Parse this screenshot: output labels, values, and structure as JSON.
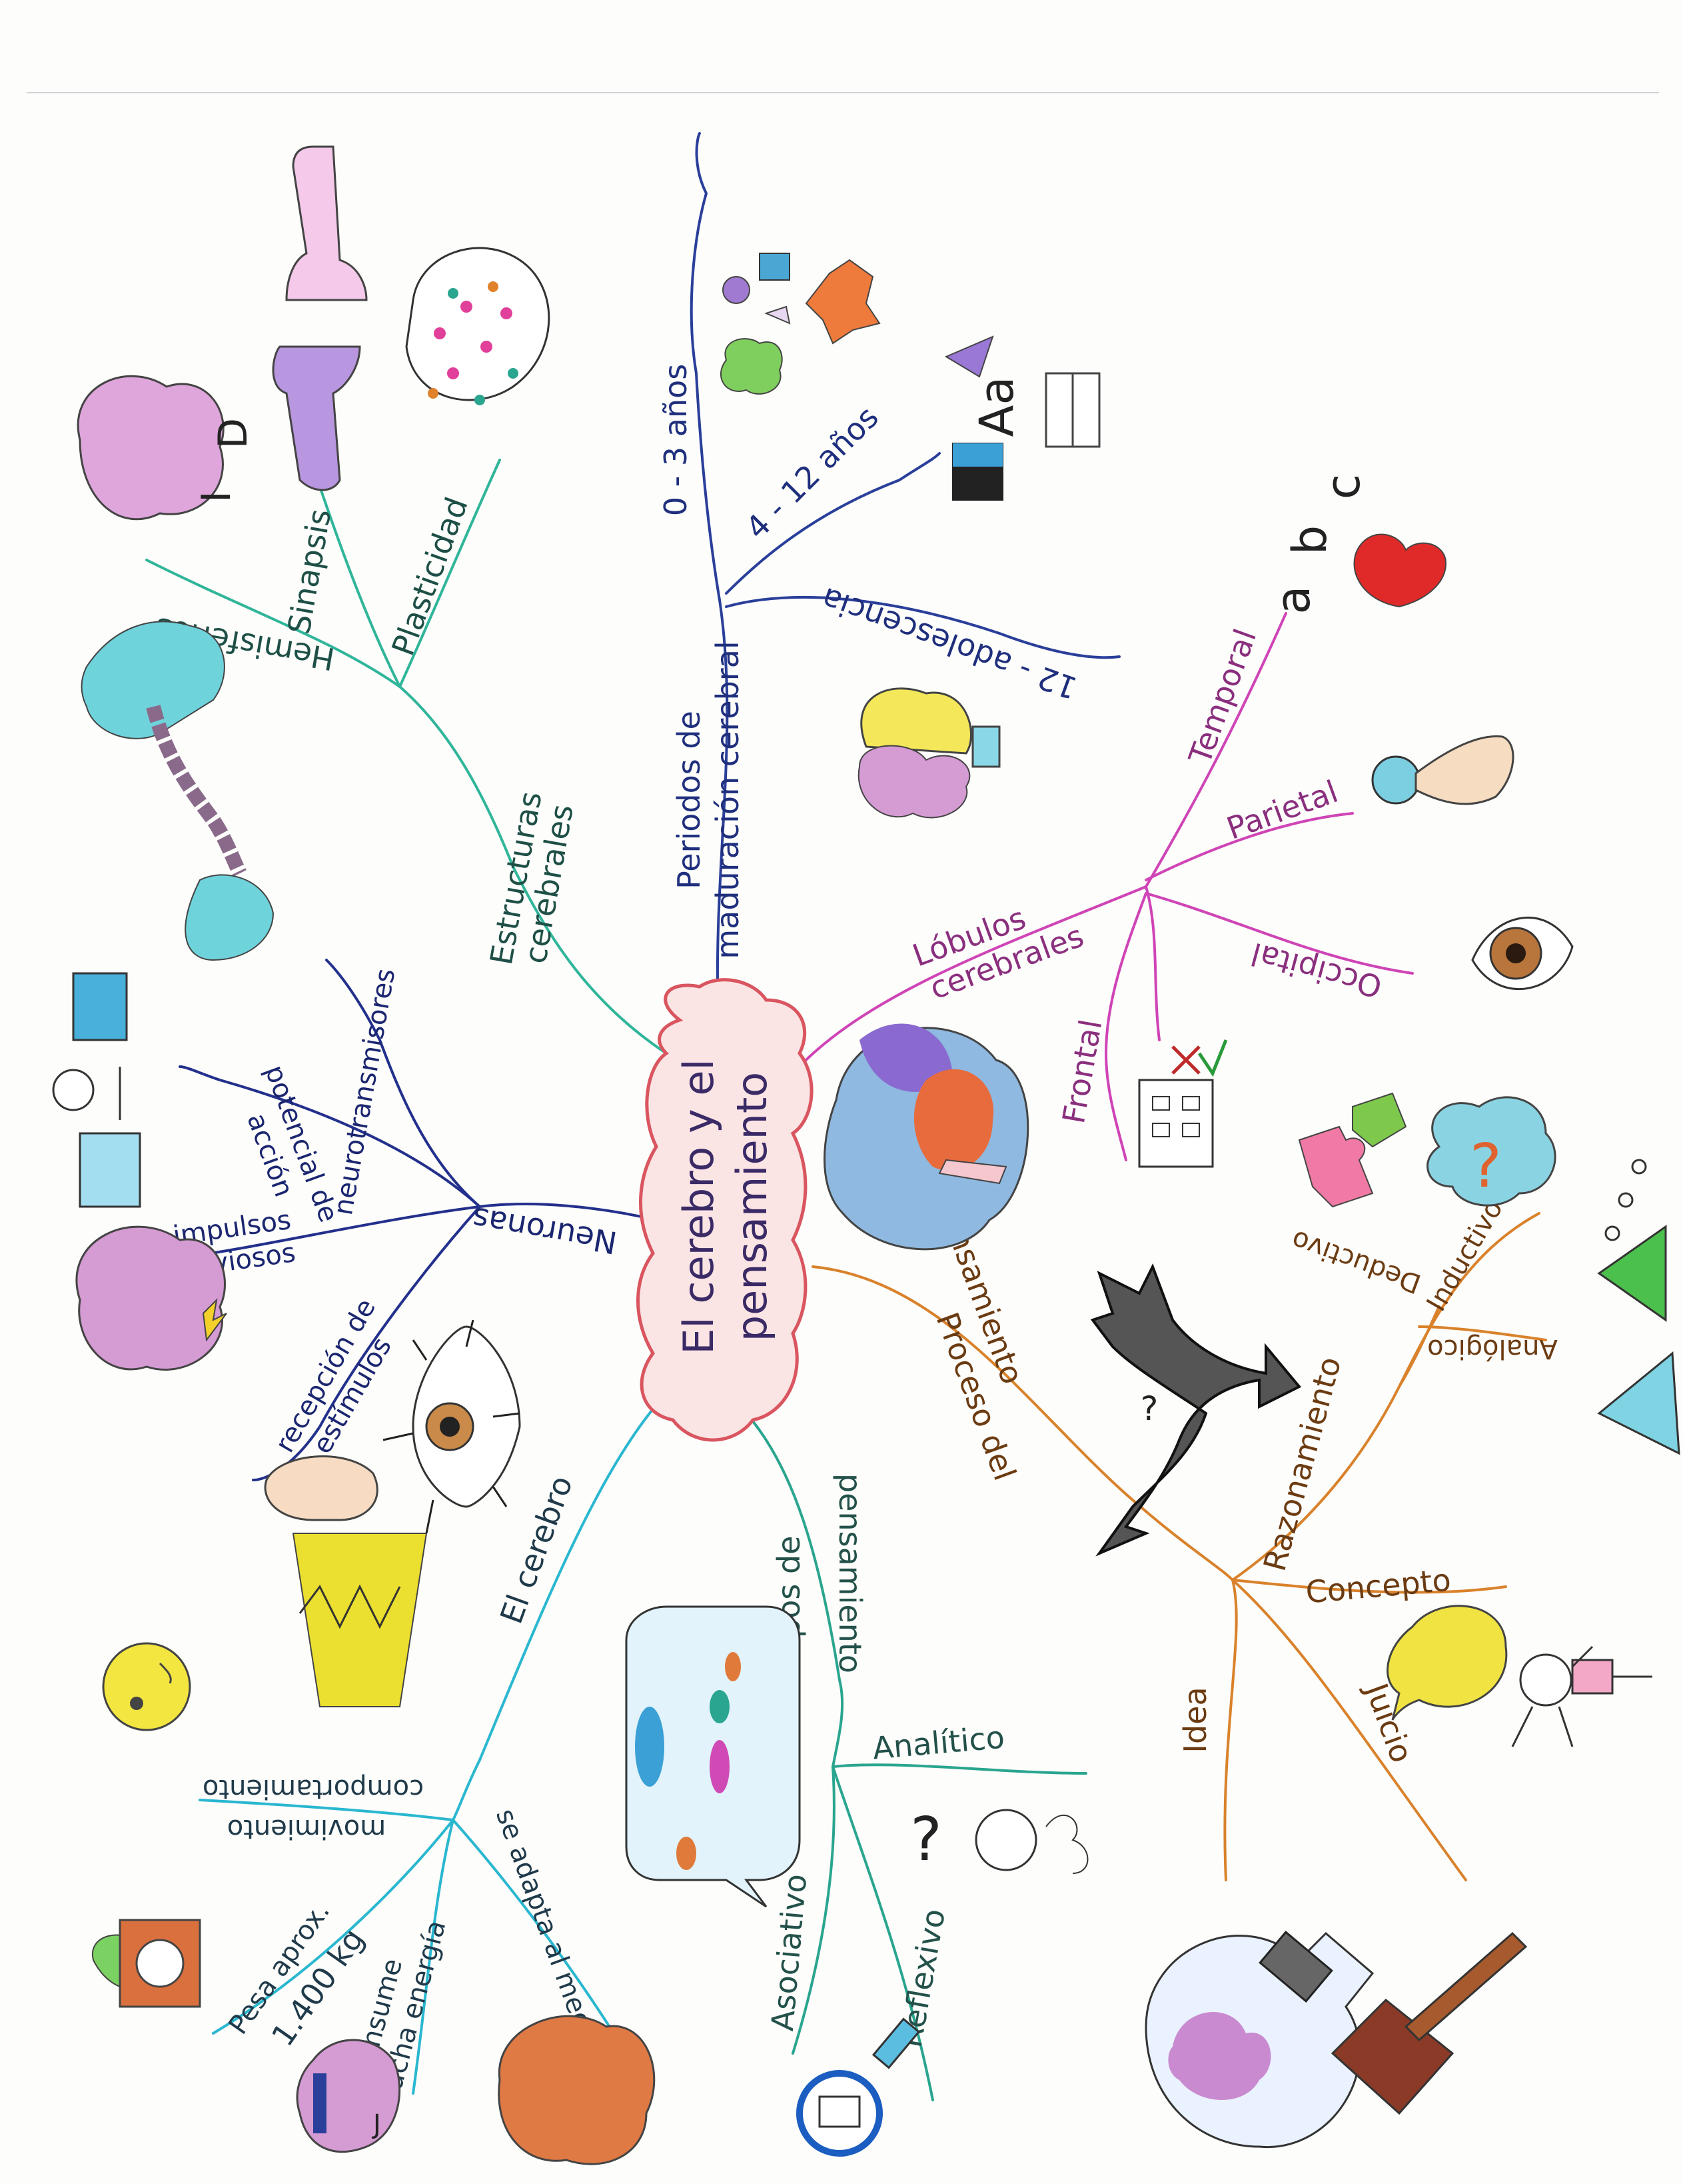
{
  "center": {
    "line1": "El cerebro y el",
    "line2": "pensamiento"
  },
  "colors": {
    "maturation": "#2a3f9a",
    "lobes": "#cf44b6",
    "process": "#d9822b",
    "types": "#2aa58f",
    "brain": "#2ab7d0",
    "neurons": "#23308c",
    "structures": "#2fb59a",
    "center_fill": "#fbe4e4",
    "center_stroke": "#d9555f"
  },
  "branches": {
    "maturation": {
      "title_1": "Periodos de",
      "title_2": "maduración cerebral",
      "sub": [
        "0 - 3 años",
        "4 - 12 años",
        "12 - adolescencia"
      ],
      "doodle_text": "Aa"
    },
    "lobes": {
      "title_1": "Lóbulos",
      "title_2": "cerebrales",
      "sub": [
        "Temporal",
        "Parietal",
        "Occipital",
        "Frontal"
      ],
      "doodle_letters": [
        "a",
        "b",
        "c"
      ]
    },
    "process": {
      "title_1": "Proceso del",
      "title_2": "pensamiento",
      "sub": [
        "Razonamiento",
        "Inductivo",
        "Deductivo",
        "Analógico",
        "Concepto",
        "Juicio",
        "Idea"
      ]
    },
    "types": {
      "title_1": "Tipos de",
      "title_2": "pensamiento",
      "sub": [
        "Analítico",
        "Reflexivo",
        "Asociativo"
      ]
    },
    "brain": {
      "title": "El cerebro",
      "sub": [
        "movimiento",
        "comportamiento",
        "se adapta al medio",
        "Pesa aprox.",
        "1.400 kg",
        "consume",
        "mucha energía"
      ]
    },
    "neurons": {
      "title": "Neuronas",
      "sub": [
        "neurotransmisores",
        "potencial de",
        "acción",
        "impulsos",
        "nerviosos",
        "recepción de",
        "estímulos"
      ]
    },
    "structures": {
      "title_1": "Estructuras",
      "title_2": "cerebrales",
      "sub": [
        "Hemisferios",
        "Sinapsis",
        "Plasticidad"
      ],
      "doodle_letters": [
        "I",
        "D"
      ]
    }
  }
}
